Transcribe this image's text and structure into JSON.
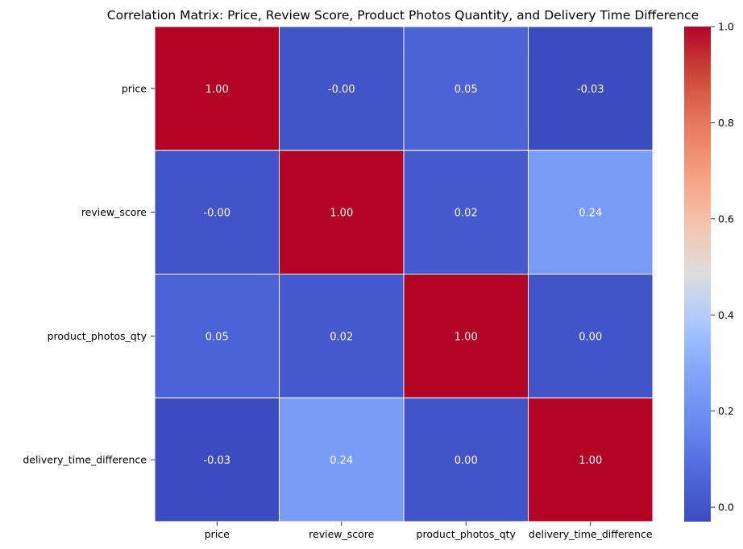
{
  "chart_data": {
    "type": "heatmap",
    "title": "Correlation Matrix: Price, Review Score, Product Photos Quantity, and Delivery Time Difference",
    "row_labels": [
      "price",
      "review_score",
      "product_photos_qty",
      "delivery_time_difference"
    ],
    "col_labels": [
      "price",
      "review_score",
      "product_photos_qty",
      "delivery_time_difference"
    ],
    "values": [
      [
        1.0,
        -0.0,
        0.05,
        -0.03
      ],
      [
        -0.0,
        1.0,
        0.02,
        0.24
      ],
      [
        0.05,
        0.02,
        1.0,
        0.0
      ],
      [
        -0.03,
        0.24,
        0.0,
        1.0
      ]
    ],
    "annotations": [
      [
        "1.00",
        "-0.00",
        "0.05",
        "-0.03"
      ],
      [
        "-0.00",
        "1.00",
        "0.02",
        "0.24"
      ],
      [
        "0.05",
        "0.02",
        "1.00",
        "0.00"
      ],
      [
        "-0.03",
        "0.24",
        "0.00",
        "1.00"
      ]
    ],
    "colormap": "coolwarm",
    "vmin": -0.03,
    "vmax": 1.0,
    "colorbar_ticks": [
      "0.0",
      "0.2",
      "0.4",
      "0.6",
      "0.8",
      "1.0"
    ],
    "colorbar_tick_values": [
      0.0,
      0.2,
      0.4,
      0.6,
      0.8,
      1.0
    ],
    "grid": true,
    "grid_color": "#ffffff"
  }
}
